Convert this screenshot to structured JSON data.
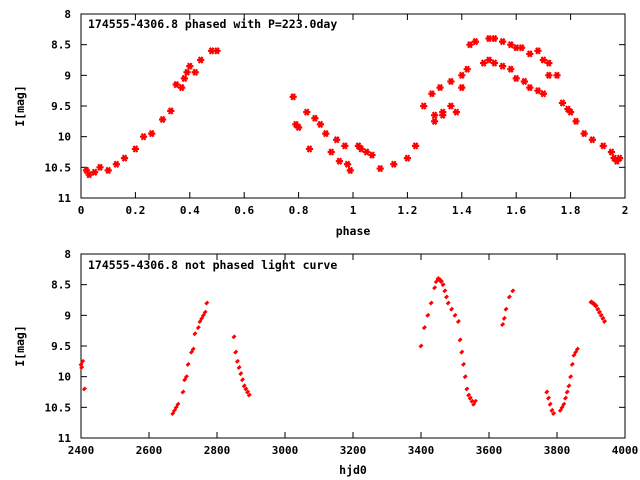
{
  "chart_data": [
    {
      "type": "scatter",
      "title": "174555-4306.8 phased with P=223.0day",
      "xlabel": "phase",
      "ylabel": "I[mag]",
      "xlim": [
        0,
        2
      ],
      "ylim": [
        11,
        8
      ],
      "y_inverted": true,
      "grid": false,
      "marker": "star",
      "color": "#ff0000",
      "xticks": [
        "0",
        "0.2",
        "0.4",
        "0.6",
        "0.8",
        "1",
        "1.2",
        "1.4",
        "1.6",
        "1.8",
        "2"
      ],
      "yticks": [
        "8",
        "8.5",
        "9",
        "9.5",
        "10",
        "10.5",
        "11"
      ],
      "series": [
        {
          "x": [
            0.02,
            0.03,
            0.05,
            0.07,
            0.1,
            0.13,
            0.16,
            0.2,
            0.23,
            0.26,
            0.3,
            0.33,
            0.35,
            0.37,
            0.38,
            0.39,
            0.4,
            0.42,
            0.44,
            0.48,
            0.5,
            0.78,
            0.79,
            0.8,
            0.83,
            0.84,
            0.86,
            0.88,
            0.9,
            0.92,
            0.94,
            0.95,
            0.97,
            0.98,
            0.99,
            1.02,
            1.03,
            1.05,
            1.07,
            1.1,
            1.15,
            1.2,
            1.23,
            1.26,
            1.29,
            1.3,
            1.32,
            1.33,
            1.36,
            1.38,
            1.4,
            1.42,
            1.43,
            1.45,
            1.5,
            1.52,
            1.55,
            1.58,
            1.6,
            1.62,
            1.65,
            1.68,
            1.7,
            1.72,
            1.75,
            1.77,
            1.79,
            1.8,
            1.82,
            1.85,
            1.88,
            1.92,
            1.95,
            1.96,
            1.97,
            1.98,
            1.3,
            1.33,
            1.36,
            1.4,
            1.48,
            1.5,
            1.52,
            1.55,
            1.58,
            1.6,
            1.63,
            1.65,
            1.68,
            1.7,
            1.72
          ],
          "y": [
            10.55,
            10.62,
            10.58,
            10.5,
            10.55,
            10.45,
            10.35,
            10.2,
            10.0,
            9.95,
            9.72,
            9.58,
            9.15,
            9.2,
            9.05,
            8.95,
            8.85,
            8.95,
            8.75,
            8.6,
            8.6,
            9.35,
            9.8,
            9.85,
            9.6,
            10.2,
            9.7,
            9.8,
            9.95,
            10.25,
            10.05,
            10.4,
            10.15,
            10.45,
            10.55,
            10.15,
            10.2,
            10.25,
            10.3,
            10.52,
            10.45,
            10.35,
            10.15,
            9.5,
            9.3,
            9.65,
            9.2,
            9.65,
            9.1,
            9.6,
            9.0,
            8.9,
            8.5,
            8.45,
            8.4,
            8.4,
            8.45,
            8.5,
            8.55,
            8.55,
            8.65,
            8.6,
            8.75,
            8.8,
            9.0,
            9.45,
            9.55,
            9.6,
            9.75,
            9.95,
            10.05,
            10.15,
            10.25,
            10.35,
            10.4,
            10.35,
            9.75,
            9.6,
            9.5,
            9.2,
            8.8,
            8.75,
            8.8,
            8.85,
            8.9,
            9.05,
            9.1,
            9.2,
            9.25,
            9.3,
            9.0
          ]
        }
      ]
    },
    {
      "type": "scatter",
      "title": "174555-4306.8 not phased light curve",
      "xlabel": "hjd0",
      "ylabel": "I[mag]",
      "xlim": [
        2400,
        4000
      ],
      "ylim": [
        11,
        8
      ],
      "y_inverted": true,
      "grid": false,
      "marker": "dot",
      "color": "#ff0000",
      "xticks": [
        "2400",
        "2600",
        "2800",
        "3000",
        "3200",
        "3400",
        "3600",
        "3800",
        "4000"
      ],
      "yticks": [
        "8",
        "8.5",
        "9",
        "9.5",
        "10",
        "10.5",
        "11"
      ],
      "series": [
        {
          "x": [
            2400,
            2402,
            2405,
            2410,
            2670,
            2675,
            2680,
            2685,
            2700,
            2705,
            2710,
            2715,
            2725,
            2730,
            2735,
            2745,
            2750,
            2755,
            2760,
            2765,
            2770,
            2850,
            2855,
            2860,
            2865,
            2870,
            2875,
            2880,
            2885,
            2890,
            2895,
            3400,
            3410,
            3420,
            3430,
            3440,
            3445,
            3450,
            3455,
            3460,
            3465,
            3470,
            3475,
            3480,
            3490,
            3500,
            3510,
            3515,
            3520,
            3525,
            3530,
            3535,
            3540,
            3545,
            3550,
            3555,
            3560,
            3640,
            3645,
            3650,
            3660,
            3670,
            3770,
            3775,
            3780,
            3785,
            3790,
            3810,
            3815,
            3820,
            3825,
            3830,
            3835,
            3840,
            3845,
            3850,
            3855,
            3860,
            3900,
            3905,
            3910,
            3915,
            3920,
            3925,
            3930,
            3935,
            3940
          ],
          "y": [
            9.8,
            9.85,
            9.75,
            10.2,
            10.6,
            10.55,
            10.5,
            10.45,
            10.25,
            10.05,
            10.0,
            9.8,
            9.6,
            9.55,
            9.3,
            9.2,
            9.1,
            9.05,
            9.0,
            8.95,
            8.8,
            9.35,
            9.6,
            9.75,
            9.85,
            9.95,
            10.05,
            10.15,
            10.2,
            10.25,
            10.3,
            9.5,
            9.2,
            9.0,
            8.8,
            8.55,
            8.45,
            8.4,
            8.42,
            8.45,
            8.5,
            8.6,
            8.7,
            8.8,
            8.9,
            9.0,
            9.1,
            9.4,
            9.6,
            9.8,
            10.0,
            10.2,
            10.3,
            10.35,
            10.4,
            10.45,
            10.4,
            9.15,
            9.05,
            8.9,
            8.7,
            8.6,
            10.25,
            10.35,
            10.45,
            10.55,
            10.6,
            10.55,
            10.5,
            10.45,
            10.35,
            10.25,
            10.15,
            10.0,
            9.8,
            9.65,
            9.6,
            9.55,
            8.78,
            8.8,
            8.82,
            8.85,
            8.9,
            8.95,
            9.0,
            9.05,
            9.1
          ]
        }
      ]
    }
  ]
}
